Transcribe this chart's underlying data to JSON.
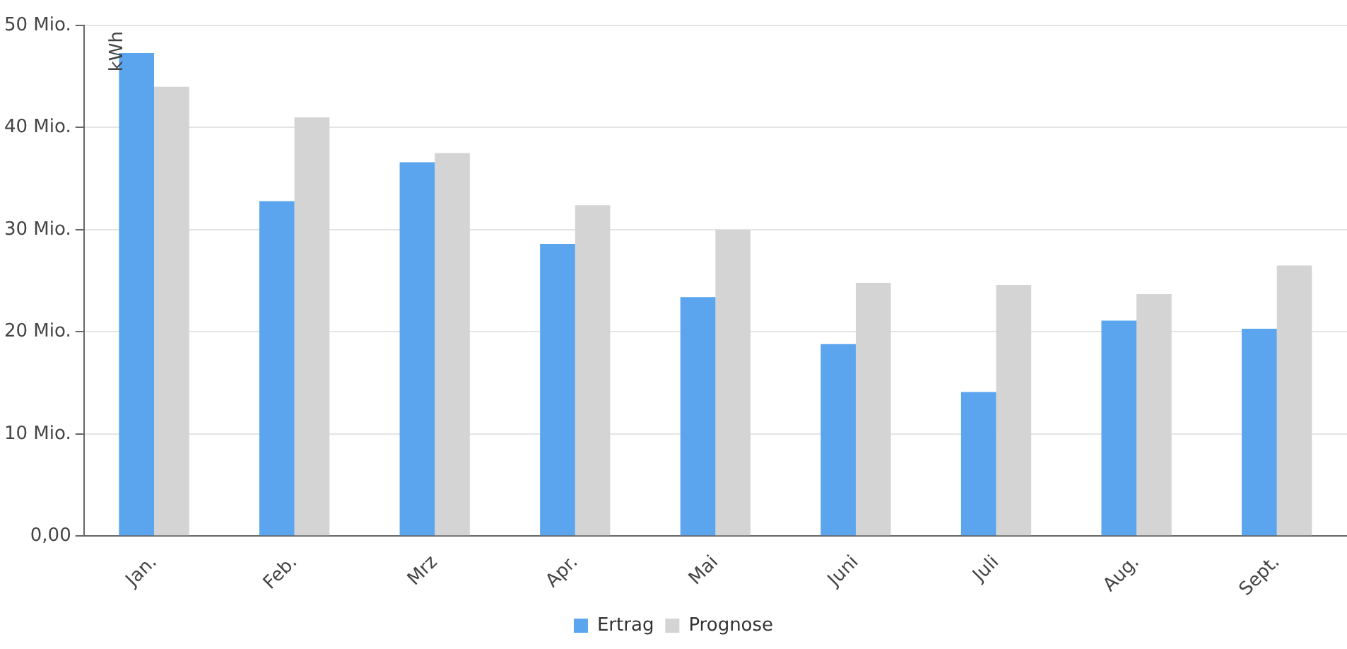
{
  "chart_data": {
    "type": "bar",
    "ylabel": "kWh",
    "categories": [
      "Jan.",
      "Feb.",
      "Mrz",
      "Apr.",
      "Mai",
      "Juni",
      "Juli",
      "Aug.",
      "Sept."
    ],
    "series": [
      {
        "name": "Ertrag",
        "color": "#5aa5ee",
        "values": [
          47.3,
          32.8,
          36.6,
          28.6,
          23.4,
          18.8,
          14.1,
          21.1,
          20.3
        ]
      },
      {
        "name": "Prognose",
        "color": "#d4d4d4",
        "values": [
          44.0,
          41.0,
          37.5,
          32.4,
          30.0,
          24.8,
          24.6,
          23.7,
          26.5
        ]
      }
    ],
    "ylim": [
      0,
      50
    ],
    "yticks": [
      {
        "value": 0,
        "label": "0,00"
      },
      {
        "value": 10,
        "label": "10 Mio."
      },
      {
        "value": 20,
        "label": "20 Mio."
      },
      {
        "value": 30,
        "label": "30 Mio."
      },
      {
        "value": 40,
        "label": "40 Mio."
      },
      {
        "value": 50,
        "label": "50 Mio."
      }
    ],
    "grid": "y",
    "legend": "bottom"
  }
}
